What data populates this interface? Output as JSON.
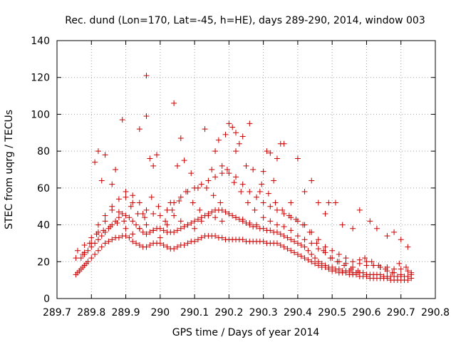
{
  "chart_data": {
    "type": "scatter",
    "title": "Rec. dund (Lon=170, Lat=-45, h=HE), days 289-290, 2014, window 003",
    "xlabel": "GPS time / Days of year 2014",
    "ylabel": "STEC from uqrg / TECUs",
    "xlim": [
      289.7,
      290.8
    ],
    "ylim": [
      0,
      140
    ],
    "xticks": [
      "289.7",
      "289.8",
      "289.9",
      "290",
      "290.1",
      "290.2",
      "290.3",
      "290.4",
      "290.5",
      "290.6",
      "290.7",
      "290.8"
    ],
    "yticks": [
      "0",
      "20",
      "40",
      "60",
      "80",
      "100",
      "120",
      "140"
    ],
    "grid": true,
    "legend": "none",
    "marker": "plus",
    "color": "#cc0000",
    "series": [
      {
        "x": [
          289.755,
          289.76,
          289.765,
          289.77,
          289.775,
          289.78,
          289.785,
          289.79,
          289.8,
          289.81,
          289.82,
          289.83,
          289.84,
          289.85,
          289.86,
          289.87,
          289.88,
          289.89,
          289.9,
          289.91,
          289.92,
          289.93,
          289.94,
          289.95,
          289.96,
          289.97,
          289.98,
          289.99,
          290.0,
          290.01,
          290.02,
          290.03,
          290.04,
          290.05,
          290.06,
          290.07,
          290.08,
          290.09,
          290.1,
          290.11,
          290.12,
          290.13,
          290.14,
          290.15,
          290.16,
          290.17,
          290.18,
          290.19,
          290.2,
          290.21,
          290.22,
          290.23,
          290.24,
          290.25,
          290.26,
          290.27,
          290.28,
          290.29,
          290.3,
          290.31,
          290.32,
          290.33,
          290.34,
          290.35,
          290.36,
          290.37,
          290.38,
          290.39,
          290.4,
          290.41,
          290.42,
          290.43,
          290.44,
          290.45,
          290.46,
          290.47,
          290.48,
          290.49,
          290.5,
          290.51,
          290.52,
          290.53,
          290.54,
          290.55,
          290.56,
          290.57,
          290.58,
          290.59,
          290.6,
          290.61,
          290.62,
          290.63,
          290.64,
          290.65,
          290.66,
          290.67,
          290.68,
          290.69,
          290.7,
          290.71,
          290.72,
          290.73
        ],
        "y": [
          13,
          14,
          15,
          16,
          17,
          18,
          19,
          20,
          22,
          24,
          26,
          28,
          30,
          31,
          32,
          33,
          33,
          34,
          34,
          33,
          31,
          30,
          29,
          28,
          28,
          29,
          30,
          30,
          30,
          29,
          28,
          27,
          27,
          28,
          29,
          29,
          30,
          31,
          31,
          32,
          33,
          34,
          34,
          34,
          34,
          33,
          33,
          32,
          32,
          32,
          32,
          32,
          32,
          31,
          31,
          31,
          31,
          31,
          31,
          30,
          30,
          30,
          30,
          29,
          28,
          27,
          26,
          25,
          24,
          23,
          22,
          21,
          20,
          19,
          18,
          17,
          17,
          16,
          15,
          15,
          14,
          14,
          14,
          13,
          13,
          13,
          12,
          12,
          12,
          11,
          11,
          11,
          11,
          11,
          11,
          10,
          10,
          10,
          10,
          10,
          10,
          11
        ]
      },
      {
        "x": [
          289.755,
          289.77,
          289.78,
          289.79,
          289.8,
          289.81,
          289.82,
          289.83,
          289.84,
          289.85,
          289.86,
          289.87,
          289.88,
          289.89,
          289.9,
          289.91,
          289.92,
          289.93,
          289.94,
          289.95,
          289.96,
          289.97,
          289.98,
          289.99,
          290.0,
          290.01,
          290.02,
          290.03,
          290.04,
          290.05,
          290.06,
          290.07,
          290.08,
          290.09,
          290.1,
          290.11,
          290.12,
          290.13,
          290.14,
          290.15,
          290.16,
          290.17,
          290.18,
          290.19,
          290.2,
          290.21,
          290.22,
          290.23,
          290.24,
          290.25,
          290.26,
          290.27,
          290.28,
          290.29,
          290.3,
          290.31,
          290.32,
          290.33,
          290.34,
          290.35,
          290.36,
          290.37,
          290.38,
          290.39,
          290.4,
          290.41,
          290.42,
          290.43,
          290.44,
          290.45,
          290.46,
          290.47,
          290.48,
          290.49,
          290.5,
          290.51,
          290.52,
          290.53,
          290.54,
          290.55,
          290.56,
          290.57,
          290.58,
          290.59,
          290.6,
          290.61,
          290.62,
          290.63,
          290.64,
          290.65,
          290.66,
          290.67,
          290.68,
          290.69,
          290.7,
          290.71,
          290.72,
          290.73
        ],
        "y": [
          22,
          22,
          24,
          26,
          28,
          30,
          32,
          34,
          36,
          38,
          40,
          42,
          44,
          46,
          45,
          44,
          42,
          40,
          38,
          36,
          35,
          36,
          37,
          38,
          38,
          37,
          36,
          36,
          36,
          37,
          38,
          39,
          40,
          41,
          42,
          43,
          44,
          45,
          46,
          47,
          48,
          48,
          48,
          47,
          46,
          45,
          44,
          43,
          42,
          41,
          40,
          39,
          39,
          38,
          38,
          37,
          37,
          36,
          36,
          35,
          34,
          33,
          32,
          31,
          30,
          29,
          28,
          26,
          24,
          22,
          20,
          19,
          18,
          17,
          17,
          16,
          16,
          15,
          15,
          15,
          14,
          14,
          14,
          14,
          13,
          13,
          13,
          13,
          13,
          12,
          12,
          12,
          12,
          12,
          12,
          12,
          12,
          13
        ]
      },
      {
        "x": [
          289.76,
          289.78,
          289.8,
          289.82,
          289.84,
          289.86,
          289.88,
          289.9,
          289.92,
          289.94,
          289.96,
          289.98,
          290.0,
          290.02,
          290.04,
          290.06,
          290.08,
          290.1,
          290.12,
          290.14,
          290.16,
          290.18,
          290.2,
          290.22,
          290.24,
          290.26,
          290.28,
          290.3,
          290.32,
          290.34,
          290.36,
          290.38,
          290.4,
          290.42,
          290.44,
          290.46,
          290.48,
          290.5,
          290.52,
          290.54,
          290.56,
          290.58,
          290.6,
          290.62,
          290.64,
          290.66,
          290.68,
          290.7,
          290.72
        ],
        "y": [
          26,
          25,
          30,
          36,
          42,
          48,
          54,
          58,
          56,
          52,
          48,
          46,
          45,
          48,
          52,
          55,
          58,
          60,
          62,
          64,
          66,
          68,
          68,
          66,
          62,
          58,
          55,
          52,
          50,
          48,
          46,
          44,
          42,
          40,
          36,
          32,
          28,
          26,
          24,
          22,
          20,
          19,
          18,
          18,
          17,
          17,
          16,
          16,
          15
        ]
      },
      {
        "x": [
          289.775,
          289.795,
          289.815,
          289.835,
          289.855,
          289.875,
          289.895,
          289.915,
          289.935,
          289.955,
          289.975,
          289.995,
          290.015,
          290.035,
          290.055,
          290.075,
          290.095,
          290.115,
          290.135,
          290.155,
          290.175,
          290.195,
          290.215,
          290.235,
          290.255,
          290.275,
          290.295,
          290.315,
          290.335,
          290.355,
          290.375,
          290.395,
          290.415,
          290.435,
          290.455,
          290.475,
          290.495,
          290.515,
          290.535,
          290.555,
          290.575,
          290.595,
          290.615,
          290.635,
          290.655,
          290.675,
          290.695,
          290.715,
          290.73
        ],
        "y": [
          24,
          30,
          35,
          37,
          39,
          41,
          42,
          50,
          46,
          44,
          55,
          50,
          42,
          48,
          53,
          58,
          52,
          48,
          60,
          56,
          52,
          70,
          63,
          58,
          52,
          48,
          62,
          57,
          52,
          48,
          45,
          43,
          40,
          36,
          30,
          26,
          22,
          20,
          18,
          16,
          15,
          22,
          20,
          18,
          16,
          14,
          19,
          17,
          14
        ]
      },
      {
        "x": [
          289.78,
          289.8,
          289.82,
          289.84,
          289.86,
          289.88,
          289.9,
          289.92,
          289.94,
          289.96,
          289.98,
          290.0,
          290.02,
          290.04,
          290.06,
          290.08,
          290.1,
          290.12,
          290.14,
          290.16,
          290.18,
          290.2,
          290.22,
          290.24,
          290.26,
          290.28,
          290.3,
          290.32,
          290.34,
          290.36,
          290.38,
          290.4,
          290.42,
          290.44,
          290.46,
          290.48,
          290.5,
          290.52,
          290.54,
          290.56,
          290.58,
          290.6,
          290.62,
          290.64,
          290.66,
          290.68,
          290.7
        ],
        "y": [
          29,
          33,
          40,
          45,
          50,
          47,
          38,
          35,
          38,
          40,
          37,
          33,
          40,
          45,
          42,
          40,
          38,
          42,
          45,
          44,
          42,
          46,
          44,
          43,
          41,
          40,
          44,
          42,
          40,
          39,
          37,
          34,
          32,
          30,
          27,
          25,
          22,
          20,
          19,
          17,
          21,
          20,
          18,
          17,
          15,
          14,
          13
        ]
      },
      {
        "x": [
          289.81,
          289.82,
          289.83,
          289.84,
          289.86,
          289.87,
          289.89,
          289.9,
          289.92,
          289.94,
          289.95,
          289.96,
          289.96,
          289.97,
          289.98,
          289.99,
          290.03,
          290.04,
          290.05,
          290.06,
          290.07,
          290.09,
          290.11,
          290.13,
          290.15,
          290.16,
          290.17,
          290.18,
          290.19,
          290.2,
          290.21,
          290.22,
          290.22,
          290.23,
          290.24,
          290.25,
          290.26,
          290.27,
          290.29,
          290.3,
          290.31,
          290.32,
          290.33,
          290.34,
          290.35,
          290.36,
          290.38,
          290.4,
          290.42,
          290.44,
          290.46,
          290.48,
          290.49,
          290.51,
          290.53,
          290.56,
          290.58,
          290.61,
          290.63,
          290.66,
          290.68,
          290.7,
          290.72
        ],
        "y": [
          74,
          80,
          64,
          78,
          62,
          70,
          97,
          55,
          52,
          92,
          46,
          121,
          99,
          76,
          72,
          78,
          52,
          106,
          72,
          87,
          75,
          68,
          60,
          92,
          70,
          80,
          86,
          72,
          89,
          95,
          93,
          80,
          90,
          84,
          88,
          72,
          95,
          70,
          58,
          69,
          80,
          79,
          64,
          76,
          84,
          84,
          52,
          76,
          58,
          64,
          52,
          46,
          52,
          52,
          40,
          38,
          48,
          42,
          38,
          34,
          36,
          32,
          28
        ]
      }
    ]
  }
}
